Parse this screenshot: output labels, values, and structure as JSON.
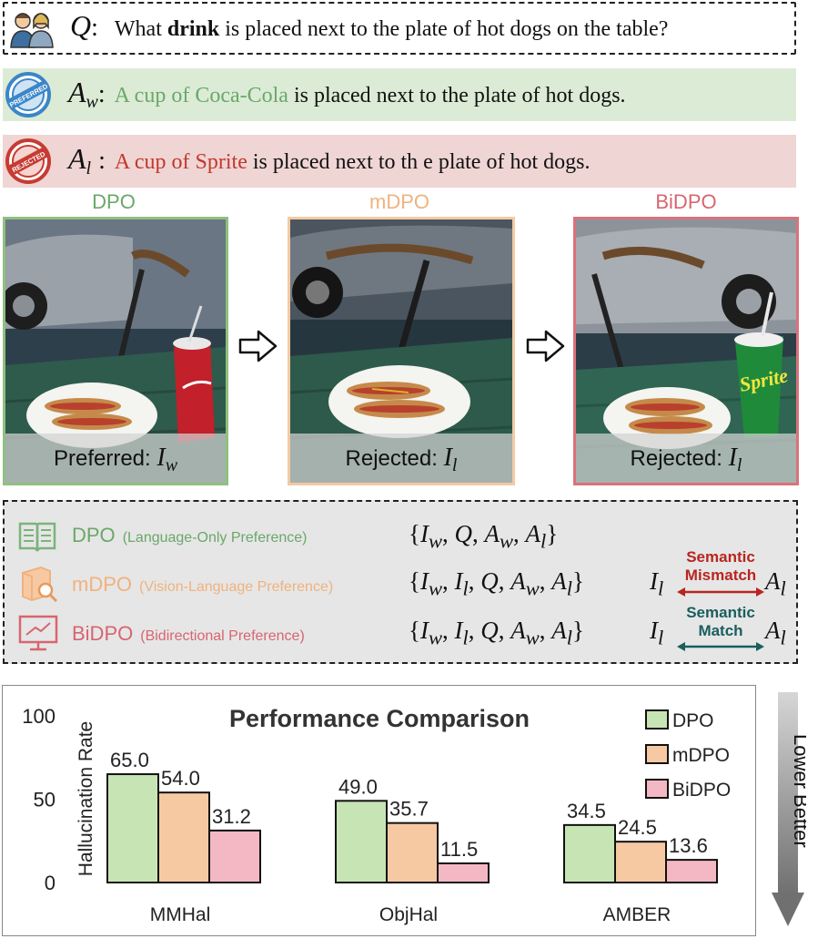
{
  "question": {
    "symbol": "Q",
    "colon": ":",
    "text_pre": "What ",
    "text_bold": "drink",
    "text_post": " is placed next to the plate of hot dogs on the table?"
  },
  "answer_w": {
    "symbol": "A",
    "sub": "w",
    "colon": ":",
    "highlight": "A cup of Coca-Cola",
    "text": " is placed next to the plate of hot dogs.",
    "stamp_text": "PREFERRED"
  },
  "answer_l": {
    "symbol": "A",
    "sub": "l",
    "colon": ":",
    "highlight": "A cup of Sprite",
    "text": " is placed next to th e plate of hot dogs.",
    "stamp_text": "REJECTED"
  },
  "panels": [
    {
      "title": "DPO",
      "caption": "Preferred: ",
      "var": "I",
      "sub": "w"
    },
    {
      "title": "mDPO",
      "caption": "Rejected: ",
      "var": "I",
      "sub": "l"
    },
    {
      "title": "BiDPO",
      "caption": "Rejected: ",
      "var": "I",
      "sub": "l"
    }
  ],
  "preferences": [
    {
      "name": "DPO",
      "desc": "(Language-Only Preference)",
      "set": "{I_w, Q, A_w, A_l}"
    },
    {
      "name": "mDPO",
      "desc": "(Vision-Language Preference)",
      "set": "{I_w, I_l, Q, A_w, A_l}",
      "relation": "Semantic Mismatch",
      "relation_l1": "Semantic",
      "relation_l2": "Mismatch"
    },
    {
      "name": "BiDPO",
      "desc": "(Bidirectional Preference)",
      "set": "{I_w, I_l, Q, A_w, A_l}",
      "relation": "Semantic Match",
      "relation_l1": "Semantic",
      "relation_l2": "Match"
    }
  ],
  "colors": {
    "dpo": "#6aa86a",
    "mdpo": "#efb27f",
    "bidpo": "#d8656f",
    "dpo_fill": "#c7e5b4",
    "mdpo_fill": "#f7c9a3",
    "bidpo_fill": "#f4b8c4",
    "mismatch": "#b8251f",
    "match": "#1a5e5e"
  },
  "side_label": "Lower Better",
  "chart_data": {
    "type": "bar",
    "title": "Performance Comparison",
    "ylabel": "Hallucination Rate",
    "xlabel": "",
    "categories": [
      "MMHal",
      "ObjHal",
      "AMBER"
    ],
    "series": [
      {
        "name": "DPO",
        "values": [
          65.0,
          49.0,
          34.5
        ]
      },
      {
        "name": "mDPO",
        "values": [
          54.0,
          35.7,
          24.5
        ]
      },
      {
        "name": "BiDPO",
        "values": [
          31.2,
          11.5,
          13.6
        ]
      }
    ],
    "yticks": [
      "100",
      "50",
      "0"
    ],
    "ylim": [
      0,
      100
    ],
    "legend_position": "top-right",
    "grid": false,
    "value_labels": [
      [
        "65.0",
        "54.0",
        "31.2"
      ],
      [
        "49.0",
        "35.7",
        "11.5"
      ],
      [
        "34.5",
        "24.5",
        "13.6"
      ]
    ]
  }
}
